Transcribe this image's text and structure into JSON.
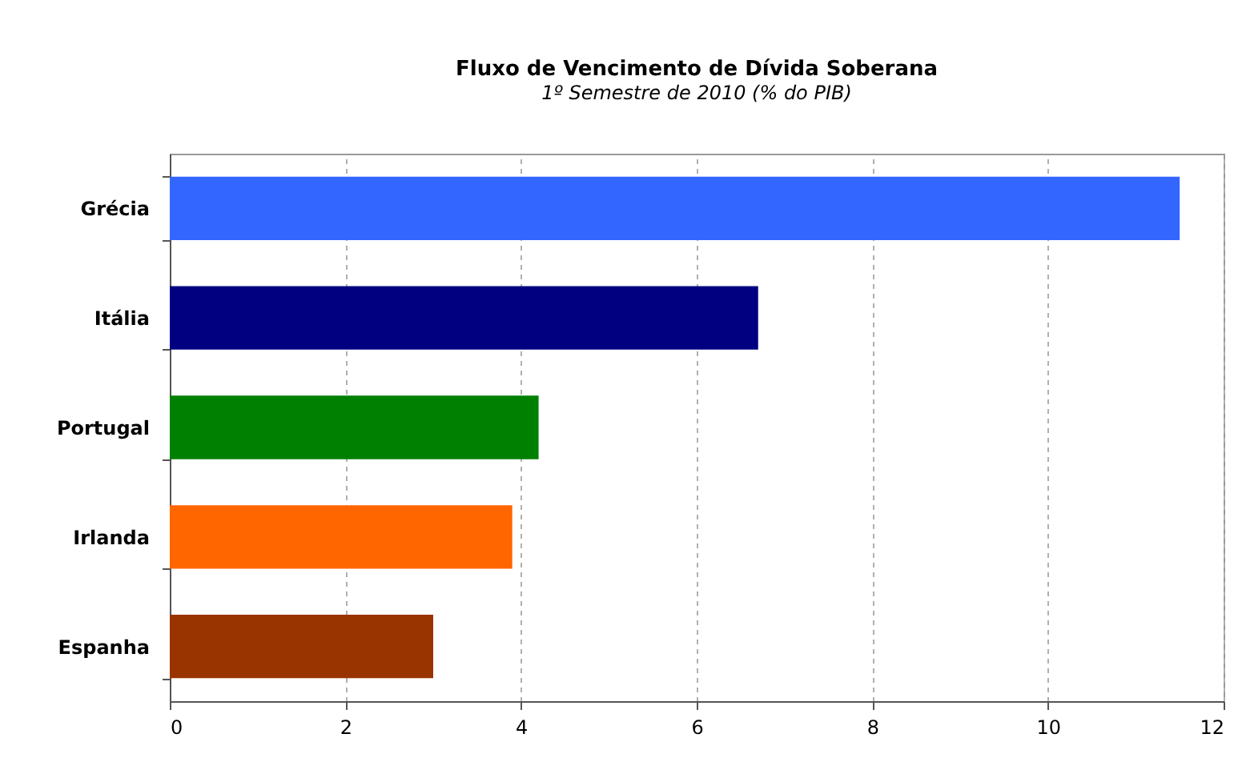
{
  "chart_data": {
    "type": "bar",
    "orientation": "horizontal",
    "title": "Fluxo de Vencimento de Dívida Soberana",
    "subtitle": "1º Semestre de 2010 (% do PIB)",
    "categories": [
      "Grécia",
      "Itália",
      "Portugal",
      "Irlanda",
      "Espanha"
    ],
    "values": [
      11.5,
      6.7,
      4.2,
      3.9,
      3.0
    ],
    "colors": [
      "#3366ff",
      "#000080",
      "#008000",
      "#ff6600",
      "#993300"
    ],
    "xlim": [
      0,
      12
    ],
    "xticks": [
      0,
      2,
      4,
      6,
      8,
      10,
      12
    ],
    "grid": "x"
  }
}
